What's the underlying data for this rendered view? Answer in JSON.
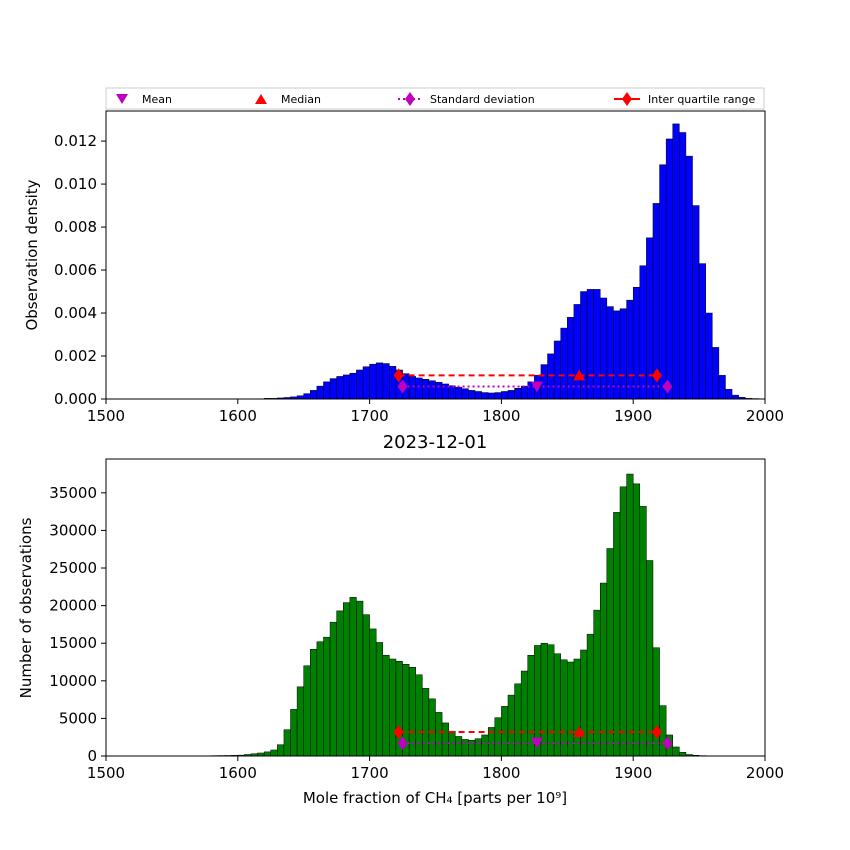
{
  "legend": {
    "mean": "Mean",
    "median": "Median",
    "std": "Standard deviation",
    "iqr": "Inter quartile range"
  },
  "colors": {
    "top_bars": "#0000ff",
    "bottom_bars": "#008000",
    "mean": "#bf00bf",
    "median": "#ff0000",
    "std": "#bf00bf",
    "iqr": "#ff0000"
  },
  "chart_data": [
    {
      "type": "bar",
      "title": "",
      "xlabel": "",
      "ylabel": "Observation density",
      "xlim": [
        1500,
        2000
      ],
      "ylim": [
        0,
        0.0134
      ],
      "xticks": [
        "1500",
        "1600",
        "1700",
        "1800",
        "1900",
        "2000"
      ],
      "yticks": [
        "0.000",
        "0.002",
        "0.004",
        "0.006",
        "0.008",
        "0.010",
        "0.012"
      ],
      "bin_start": 1620,
      "bin_width": 5,
      "values": [
        3e-05,
        3e-05,
        5e-05,
        7e-05,
        0.0001,
        0.00015,
        0.00025,
        0.0004,
        0.0006,
        0.0008,
        0.00095,
        0.00105,
        0.00112,
        0.0012,
        0.00135,
        0.0015,
        0.00162,
        0.00168,
        0.00165,
        0.00152,
        0.00135,
        0.00118,
        0.00105,
        0.00098,
        0.00092,
        0.00085,
        0.00078,
        0.0007,
        0.00062,
        0.00055,
        0.00048,
        0.0004,
        0.00035,
        0.0003,
        0.00028,
        0.0003,
        0.00035,
        0.0004,
        0.0005,
        0.0006,
        0.0008,
        0.0011,
        0.0016,
        0.0021,
        0.0027,
        0.0033,
        0.0038,
        0.0044,
        0.005,
        0.0051,
        0.0051,
        0.0047,
        0.0043,
        0.0041,
        0.0042,
        0.0046,
        0.0052,
        0.0062,
        0.0075,
        0.0091,
        0.0109,
        0.0121,
        0.0128,
        0.0124,
        0.0113,
        0.009,
        0.0063,
        0.004,
        0.0024,
        0.0011,
        0.00045,
        0.00018,
        8e-05,
        3e-05,
        2e-05
      ],
      "stats": {
        "mean": {
          "x": 1827,
          "y": 0.00058
        },
        "median": {
          "x": 1859,
          "y": 0.0011
        },
        "std": {
          "x1": 1725,
          "x2": 1926,
          "y": 0.00058
        },
        "iqr": {
          "x1": 1722,
          "x2": 1918,
          "y": 0.0011
        }
      }
    },
    {
      "type": "bar",
      "title": "2023-12-01",
      "xlabel": "Mole fraction of CH₄ [parts per 10⁹]",
      "ylabel": "Number of observations",
      "xlim": [
        1500,
        2000
      ],
      "ylim": [
        0,
        39500
      ],
      "xticks": [
        "1500",
        "1600",
        "1700",
        "1800",
        "1900",
        "2000"
      ],
      "yticks": [
        "0",
        "5000",
        "10000",
        "15000",
        "20000",
        "25000",
        "30000",
        "35000"
      ],
      "bin_start": 1580,
      "bin_width": 5,
      "values": [
        50,
        60,
        70,
        90,
        120,
        200,
        300,
        400,
        550,
        800,
        1500,
        3500,
        6200,
        9200,
        12000,
        14200,
        15200,
        15800,
        17800,
        19300,
        20400,
        21100,
        20600,
        18800,
        16900,
        15100,
        13400,
        12900,
        12600,
        12200,
        11800,
        10800,
        9000,
        7600,
        5800,
        4400,
        3300,
        2600,
        2200,
        2100,
        2300,
        2800,
        3800,
        5100,
        6600,
        8100,
        9600,
        11300,
        13400,
        14700,
        15000,
        14800,
        13600,
        12800,
        12500,
        12900,
        14100,
        16200,
        19400,
        23000,
        27600,
        32400,
        35800,
        37500,
        36200,
        33200,
        26000,
        14400,
        6700,
        2800,
        1200,
        500,
        200,
        100,
        50
      ],
      "stats": {
        "mean": {
          "x": 1827,
          "y": 1800
        },
        "median": {
          "x": 1859,
          "y": 3200
        },
        "std": {
          "x1": 1725,
          "x2": 1926,
          "y": 1700
        },
        "iqr": {
          "x1": 1722,
          "x2": 1918,
          "y": 3200
        }
      }
    }
  ]
}
